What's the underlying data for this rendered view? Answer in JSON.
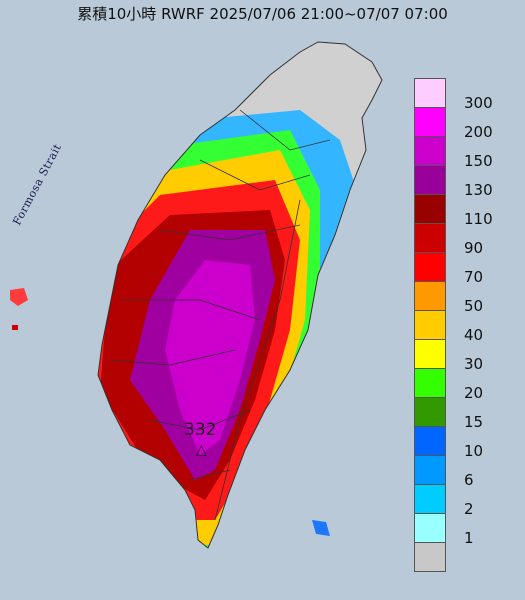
{
  "title": "累積10小時 RWRF 2025/07/06 21:00~07/07 07:00",
  "strait_label": "Formosa Strait",
  "max_value": "332",
  "max_marker": "△",
  "legend": [
    {
      "label": "300",
      "color": "#ffccff"
    },
    {
      "label": "200",
      "color": "#ff00ff"
    },
    {
      "label": "150",
      "color": "#cc00cc"
    },
    {
      "label": "130",
      "color": "#990099"
    },
    {
      "label": "110",
      "color": "#990000"
    },
    {
      "label": "90",
      "color": "#cc0000"
    },
    {
      "label": "70",
      "color": "#ff0000"
    },
    {
      "label": "50",
      "color": "#ff9900"
    },
    {
      "label": "40",
      "color": "#ffcc00"
    },
    {
      "label": "30",
      "color": "#ffff00"
    },
    {
      "label": "20",
      "color": "#33ff00"
    },
    {
      "label": "15",
      "color": "#339900"
    },
    {
      "label": "10",
      "color": "#0066ff"
    },
    {
      "label": "6",
      "color": "#0099ff"
    },
    {
      "label": "2",
      "color": "#00ccff"
    },
    {
      "label": "1",
      "color": "#99ffff"
    },
    {
      "label": "",
      "color": "#c8c8c8"
    }
  ]
}
